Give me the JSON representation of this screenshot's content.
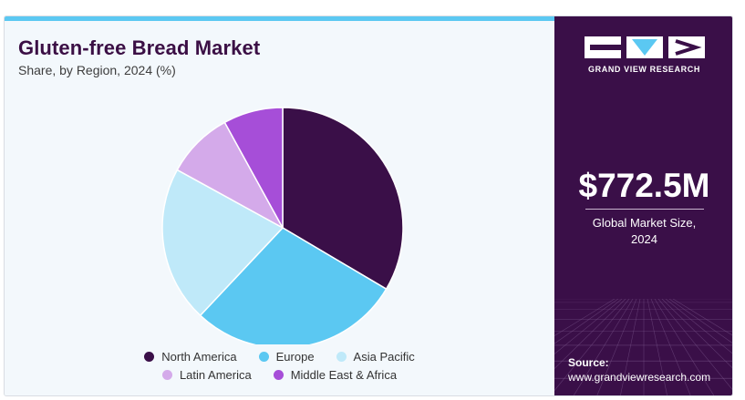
{
  "chart_data": {
    "type": "pie",
    "title": "Gluten-free Bread Market",
    "subtitle": "Share, by Region, 2024 (%)",
    "categories": [
      "North America",
      "Europe",
      "Asia Pacific",
      "Latin America",
      "Middle East & Africa"
    ],
    "values": [
      33.5,
      28.5,
      21.0,
      9.0,
      8.0
    ],
    "colors": [
      "#3a0f48",
      "#5bc8f2",
      "#bfe9f9",
      "#d4aaea",
      "#a64ed8"
    ],
    "legend_placement": "bottom",
    "legend_rows": [
      [
        "North America",
        "Europe",
        "Asia Pacific"
      ],
      [
        "Latin America",
        "Middle East & Africa"
      ]
    ]
  },
  "sidebar": {
    "brand": "GRAND VIEW RESEARCH",
    "market_size_value": "$772.5M",
    "market_size_label_line1": "Global Market Size,",
    "market_size_label_line2": "2024",
    "source_label": "Source:",
    "source_url": "www.grandviewresearch.com"
  }
}
